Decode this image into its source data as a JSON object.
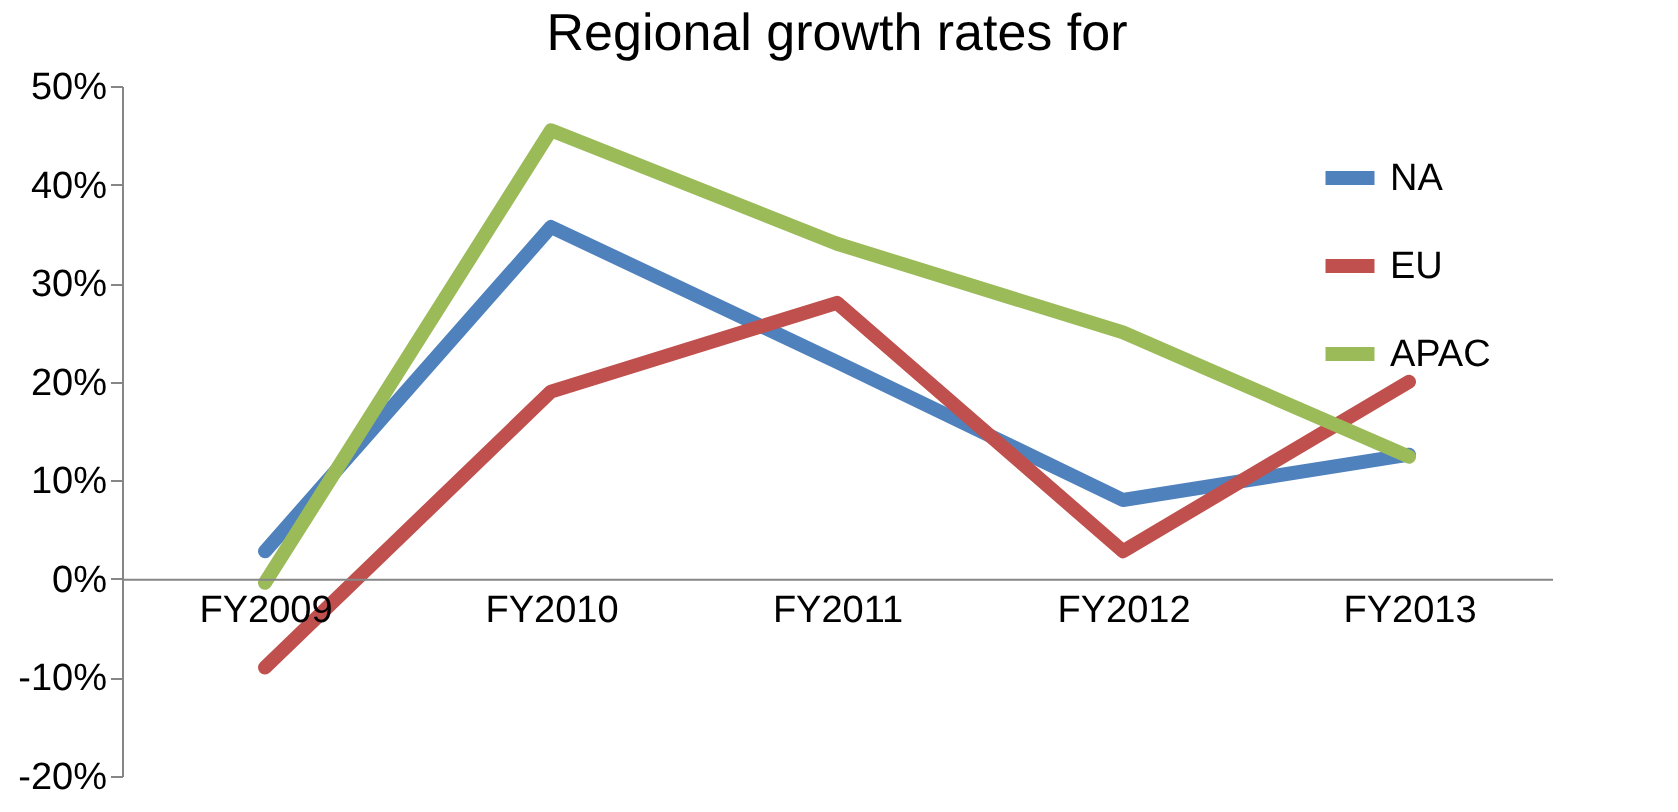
{
  "chart_data": {
    "type": "line",
    "title": "Regional growth rates for",
    "categories": [
      "FY2009",
      "FY2010",
      "FY2011",
      "FY2012",
      "FY2013"
    ],
    "series": [
      {
        "name": "NA",
        "color": "#4f81bd",
        "values": [
          2.8,
          35.7,
          22,
          8,
          12.6
        ]
      },
      {
        "name": "EU",
        "color": "#c0504d",
        "values": [
          -9,
          19,
          28,
          2.8,
          20
        ]
      },
      {
        "name": "APAC",
        "color": "#9bbb59",
        "values": [
          -0.4,
          45.5,
          34,
          25,
          12.4
        ]
      }
    ],
    "ylim": [
      -20,
      50
    ],
    "yticks": [
      {
        "value": -20,
        "label": "-20%"
      },
      {
        "value": -10,
        "label": "-10%"
      },
      {
        "value": 0,
        "label": "0%"
      },
      {
        "value": 10,
        "label": "10%"
      },
      {
        "value": 20,
        "label": "20%"
      },
      {
        "value": 30,
        "label": "30%"
      },
      {
        "value": 40,
        "label": "40%"
      },
      {
        "value": 50,
        "label": "50%"
      }
    ],
    "legend": "top right",
    "grid": false,
    "marker": "none",
    "line_style": "solid"
  }
}
